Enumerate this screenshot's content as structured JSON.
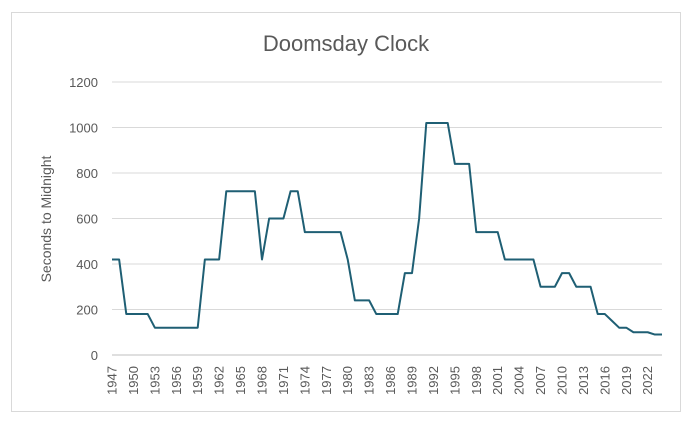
{
  "chart_data": {
    "type": "line",
    "title": "Doomsday Clock",
    "xlabel": "",
    "ylabel": "Seconds to Midnight",
    "ylim": [
      0,
      1200
    ],
    "yticks": [
      0,
      200,
      400,
      600,
      800,
      1000,
      1200
    ],
    "xticks": [
      1947,
      1950,
      1953,
      1956,
      1959,
      1962,
      1965,
      1968,
      1971,
      1974,
      1977,
      1980,
      1983,
      1986,
      1989,
      1992,
      1995,
      1998,
      2001,
      2004,
      2007,
      2010,
      2013,
      2016,
      2019,
      2022
    ],
    "grid": true,
    "legend": "none",
    "color": "#1f5f74",
    "series": [
      {
        "x": [
          1947,
          1948,
          1949,
          1950,
          1951,
          1952,
          1953,
          1954,
          1955,
          1956,
          1957,
          1958,
          1959,
          1960,
          1961,
          1962,
          1963,
          1964,
          1965,
          1966,
          1967,
          1968,
          1969,
          1970,
          1971,
          1972,
          1973,
          1974,
          1975,
          1976,
          1977,
          1978,
          1979,
          1980,
          1981,
          1982,
          1983,
          1984,
          1985,
          1986,
          1987,
          1988,
          1989,
          1990,
          1991,
          1992,
          1993,
          1994,
          1995,
          1996,
          1997,
          1998,
          1999,
          2000,
          2001,
          2002,
          2003,
          2004,
          2005,
          2006,
          2007,
          2008,
          2009,
          2010,
          2011,
          2012,
          2013,
          2014,
          2015,
          2016,
          2017,
          2018,
          2019,
          2020,
          2021,
          2022,
          2023,
          2024
        ],
        "values": [
          420,
          420,
          180,
          180,
          180,
          180,
          120,
          120,
          120,
          120,
          120,
          120,
          120,
          420,
          420,
          420,
          720,
          720,
          720,
          720,
          720,
          420,
          600,
          600,
          600,
          720,
          720,
          540,
          540,
          540,
          540,
          540,
          540,
          420,
          240,
          240,
          240,
          180,
          180,
          180,
          180,
          360,
          360,
          600,
          1020,
          1020,
          1020,
          1020,
          840,
          840,
          840,
          540,
          540,
          540,
          540,
          420,
          420,
          420,
          420,
          420,
          300,
          300,
          300,
          360,
          360,
          300,
          300,
          300,
          180,
          180,
          150,
          120,
          120,
          100,
          100,
          100,
          90,
          90
        ]
      }
    ]
  }
}
